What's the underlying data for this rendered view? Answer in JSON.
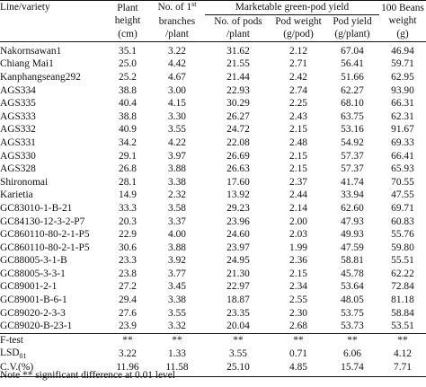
{
  "table": {
    "headers": {
      "line": "Line/variety",
      "height_l1": "Plant",
      "height_l2": "height",
      "height_l3": "(cm)",
      "branches_l1": "No. of 1",
      "branches_sup": "st",
      "branches_l2": "branches",
      "branches_l3": "/plant",
      "group": "Marketable green-pod yield",
      "pods_l1": "No. of pods",
      "pods_l2": "/plant",
      "podw_l1": "Pod weight",
      "podw_l2": "(g/pod)",
      "yield_l1": "Pod yield",
      "yield_l2": "(g/plant)",
      "beans_l1": "100 Beans",
      "beans_l2": "weight",
      "beans_l3": "(g)"
    },
    "rows": [
      {
        "name": "Nakornsawan1",
        "height": "35.1",
        "branches": "3.22",
        "pods": "31.62",
        "pod_weight": "2.12",
        "pod_yield": "67.04",
        "beans": "46.94"
      },
      {
        "name": "Chiang Mai1",
        "height": "25.0",
        "branches": "4.42",
        "pods": "21.55",
        "pod_weight": "2.71",
        "pod_yield": "56.41",
        "beans": "59.71"
      },
      {
        "name": "Kanphangseang292",
        "height": "25.2",
        "branches": "4.67",
        "pods": "21.44",
        "pod_weight": "2.42",
        "pod_yield": "51.66",
        "beans": "62.95"
      },
      {
        "name": "AGS334",
        "height": "38.8",
        "branches": "3.00",
        "pods": "22.93",
        "pod_weight": "2.74",
        "pod_yield": "62.27",
        "beans": "93.90"
      },
      {
        "name": "AGS335",
        "height": "40.4",
        "branches": "4.15",
        "pods": "30.29",
        "pod_weight": "2.25",
        "pod_yield": "68.10",
        "beans": "66.31"
      },
      {
        "name": "AGS333",
        "height": "38.8",
        "branches": "3.30",
        "pods": "26.27",
        "pod_weight": "2.43",
        "pod_yield": "63.75",
        "beans": "62.31"
      },
      {
        "name": "AGS332",
        "height": "40.9",
        "branches": "3.55",
        "pod_weight": "2.15",
        "pods": "24.72",
        "pod_yield": "53.16",
        "beans": "91.67"
      },
      {
        "name": "AGS331",
        "height": "34.2",
        "branches": "4.22",
        "pods": "22.08",
        "pod_weight": "2.48",
        "pod_yield": "54.92",
        "beans": "69.33"
      },
      {
        "name": "AGS330",
        "height": "29.1",
        "branches": "3.97",
        "pods": "26.69",
        "pod_weight": "2.15",
        "pod_yield": "57.37",
        "beans": "66.41"
      },
      {
        "name": "AGS328",
        "height": "26.8",
        "branches": "3.88",
        "pods": "26.63",
        "pod_weight": "2.15",
        "pod_yield": "57.37",
        "beans": "65.93"
      },
      {
        "name": "Shironomai",
        "height": "28.1",
        "branches": "3.38",
        "pods": "17.60",
        "pod_weight": "2.37",
        "pod_yield": "41.74",
        "beans": "70.55"
      },
      {
        "name": "Karietia",
        "height": "14.9",
        "branches": "2.32",
        "pods": "13.92",
        "pod_weight": "2.44",
        "pod_yield": "33.94",
        "beans": "47.55"
      },
      {
        "name": "GC83010-1-B-21",
        "height": "33.3",
        "branches": "3.58",
        "pods": "29.23",
        "pod_weight": "2.14",
        "pod_yield": "62.60",
        "beans": "69.71"
      },
      {
        "name": "GC84130-12-3-2-P7",
        "height": "20.3",
        "branches": "3.37",
        "pods": "23.96",
        "pod_weight": "2.00",
        "pod_yield": "47.93",
        "beans": "60.83"
      },
      {
        "name": "GC860110-80-2-1-P5",
        "height": "22.9",
        "branches": "4.00",
        "pods": "24.60",
        "pod_weight": "2.03",
        "pod_yield": "49.93",
        "beans": "55.76"
      },
      {
        "name": "GC860110-80-2-1-P5",
        "height": "30.6",
        "branches": "3.88",
        "pods": "23.97",
        "pod_weight": "1.99",
        "pod_yield": "47.59",
        "beans": "59.80"
      },
      {
        "name": "GC88005-3-1-B",
        "height": "23.3",
        "branches": "3.92",
        "pods": "24.95",
        "pod_weight": "2.36",
        "pod_yield": "58.81",
        "beans": "55.51"
      },
      {
        "name": "GC88005-3-3-1",
        "height": "23.8",
        "branches": "3.77",
        "pods": "21.30",
        "pod_weight": "2.15",
        "pod_yield": "45.78",
        "beans": "62.22"
      },
      {
        "name": "GC89001-2-1",
        "height": "27.2",
        "branches": "3.45",
        "pods": "22.97",
        "pod_weight": "2.34",
        "pod_yield": "53.64",
        "beans": "72.84"
      },
      {
        "name": "GC89001-B-6-1",
        "height": "29.4",
        "branches": "3.38",
        "pods": "18.87",
        "pod_weight": "2.55",
        "pod_yield": "48.05",
        "beans": "81.18"
      },
      {
        "name": "GC89020-2-3-3",
        "height": "27.6",
        "branches": "3.55",
        "pods": "23.35",
        "pod_weight": "2.30",
        "pod_yield": "53.75",
        "beans": "58.84"
      },
      {
        "name": "GC89020-B-23-1",
        "height": "23.9",
        "branches": "3.32",
        "pods": "20.04",
        "pod_weight": "2.68",
        "pod_yield": "53.73",
        "beans": "53.51"
      }
    ],
    "stats": {
      "ftest": {
        "name": "F-test",
        "height": "**",
        "branches": "**",
        "pods": "**",
        "pod_weight": "**",
        "pod_yield": "**",
        "beans": "**"
      },
      "lsd": {
        "name": "LSD",
        "sub": "01",
        "height": "3.22",
        "branches": "1.33",
        "pods": "3.55",
        "pod_weight": "0.71",
        "pod_yield": "6.06",
        "beans": "4.12"
      },
      "cv": {
        "name": "C.V.(%)",
        "height": "11.96",
        "branches": "11.58",
        "pods": "25.10",
        "pod_weight": "4.85",
        "pod_yield": "15.74",
        "beans": "7.71"
      }
    }
  },
  "note": "Note ** significant difference at 0.01 level"
}
